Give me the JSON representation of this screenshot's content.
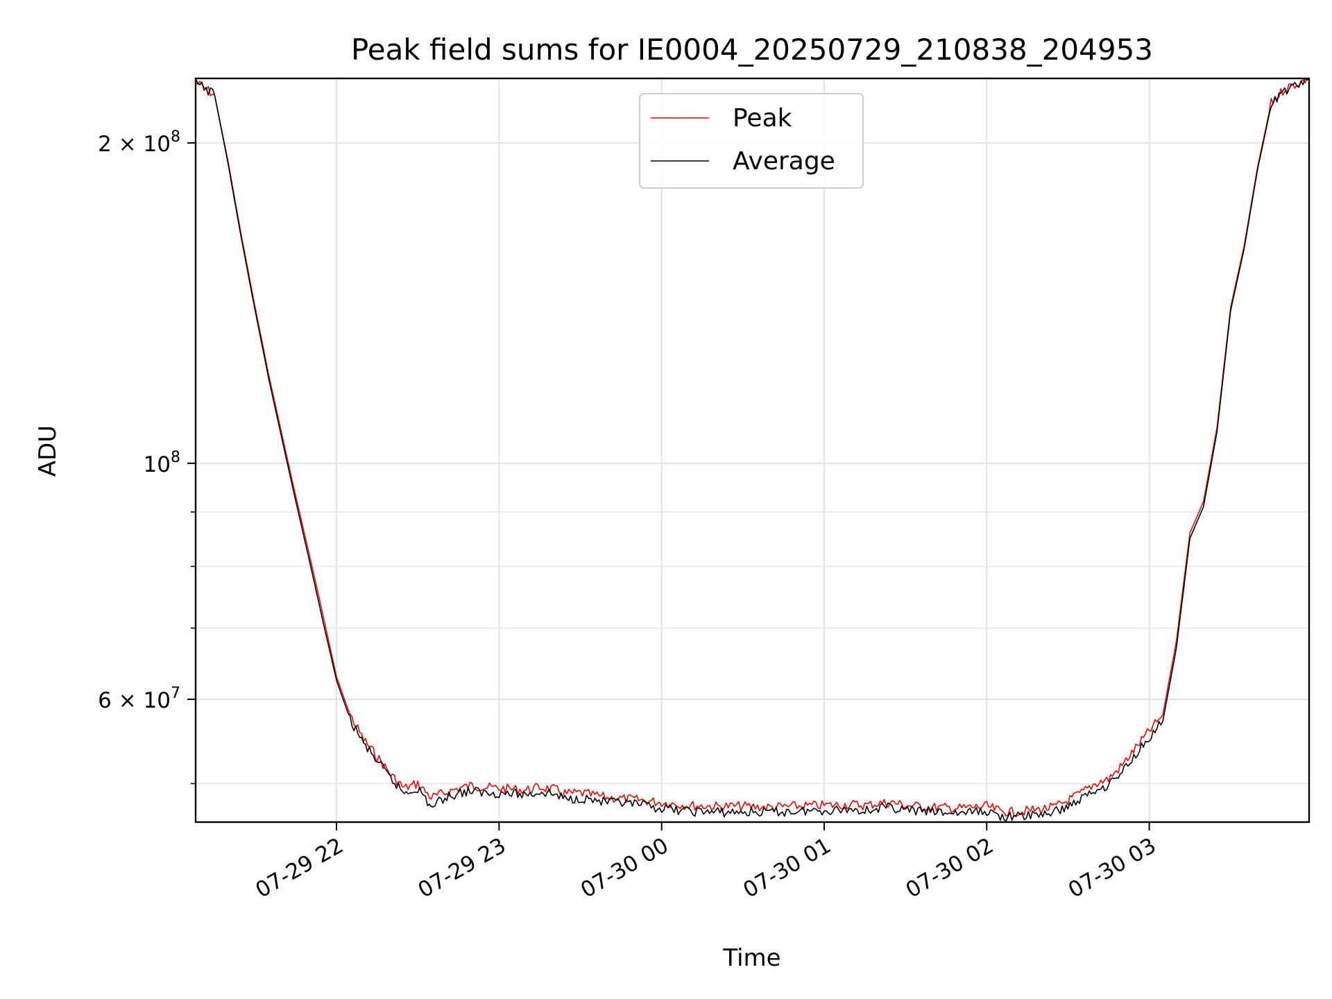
{
  "chart_data": {
    "type": "line",
    "title": "Peak field sums for IE0004_20250729_210838_204953",
    "xlabel": "Time",
    "ylabel": "ADU",
    "yscale": "log",
    "grid": true,
    "legend_position": "top-center",
    "xlim": [
      "2025-07-29 21:08",
      "2025-07-30 03:59"
    ],
    "ylim": [
      46000000,
      230000000
    ],
    "x_ticks": [
      {
        "value": "2025-07-29 22:00",
        "label": "07-29 22"
      },
      {
        "value": "2025-07-29 23:00",
        "label": "07-29 23"
      },
      {
        "value": "2025-07-30 00:00",
        "label": "07-30 00"
      },
      {
        "value": "2025-07-30 01:00",
        "label": "07-30 01"
      },
      {
        "value": "2025-07-30 02:00",
        "label": "07-30 02"
      },
      {
        "value": "2025-07-30 03:00",
        "label": "07-30 03"
      }
    ],
    "y_ticks": [
      {
        "value": 200000000,
        "mantissa": "2",
        "exponent": "8"
      },
      {
        "value": 100000000,
        "mantissa": "",
        "exponent": "8"
      },
      {
        "value": 60000000,
        "mantissa": "6",
        "exponent": "7"
      }
    ],
    "y_minor_ticks": [
      50000000,
      70000000,
      80000000,
      90000000
    ],
    "x": [
      "2025-07-29 21:08",
      "2025-07-29 21:15",
      "2025-07-29 21:20",
      "2025-07-29 21:25",
      "2025-07-29 21:30",
      "2025-07-29 21:35",
      "2025-07-29 21:40",
      "2025-07-29 21:45",
      "2025-07-29 21:50",
      "2025-07-29 21:55",
      "2025-07-29 22:00",
      "2025-07-29 22:05",
      "2025-07-29 22:10",
      "2025-07-29 22:15",
      "2025-07-29 22:20",
      "2025-07-29 22:25",
      "2025-07-29 22:30",
      "2025-07-29 22:35",
      "2025-07-29 22:40",
      "2025-07-29 22:45",
      "2025-07-29 22:50",
      "2025-07-29 22:55",
      "2025-07-29 23:00",
      "2025-07-29 23:10",
      "2025-07-29 23:15",
      "2025-07-29 23:20",
      "2025-07-29 23:25",
      "2025-07-29 23:30",
      "2025-07-29 23:40",
      "2025-07-29 23:50",
      "2025-07-30 00:00",
      "2025-07-30 00:10",
      "2025-07-30 00:20",
      "2025-07-30 00:30",
      "2025-07-30 00:40",
      "2025-07-30 00:50",
      "2025-07-30 01:00",
      "2025-07-30 01:10",
      "2025-07-30 01:15",
      "2025-07-30 01:20",
      "2025-07-30 01:25",
      "2025-07-30 01:30",
      "2025-07-30 01:40",
      "2025-07-30 01:50",
      "2025-07-30 02:00",
      "2025-07-30 02:05",
      "2025-07-30 02:10",
      "2025-07-30 02:20",
      "2025-07-30 02:25",
      "2025-07-30 02:30",
      "2025-07-30 02:35",
      "2025-07-30 02:40",
      "2025-07-30 02:45",
      "2025-07-30 02:50",
      "2025-07-30 02:55",
      "2025-07-30 03:00",
      "2025-07-30 03:05",
      "2025-07-30 03:10",
      "2025-07-30 03:15",
      "2025-07-30 03:20",
      "2025-07-30 03:25",
      "2025-07-30 03:30",
      "2025-07-30 03:35",
      "2025-07-30 03:40",
      "2025-07-30 03:45",
      "2025-07-30 03:50",
      "2025-07-30 03:59"
    ],
    "series": [
      {
        "name": "Peak",
        "color": "#ff0000",
        "values": [
          228000000,
          222000000,
          192000000,
          163000000,
          140000000,
          121000000,
          106000000,
          93000000,
          82000000,
          72000000,
          63000000,
          58000000,
          55000000,
          53000000,
          51000000,
          49500000,
          50000000,
          48500000,
          49000000,
          49500000,
          49800000,
          49600000,
          49500000,
          49300000,
          49600000,
          49400000,
          48900000,
          49000000,
          48500000,
          48300000,
          48000000,
          47700000,
          47600000,
          47600000,
          47500000,
          47600000,
          47700000,
          47800000,
          47700000,
          47900000,
          48000000,
          47700000,
          47500000,
          47400000,
          47600000,
          47100000,
          47000000,
          47300000,
          47500000,
          48200000,
          49000000,
          50000000,
          50500000,
          52000000,
          54000000,
          56000000,
          58000000,
          68000000,
          86000000,
          92000000,
          108000000,
          140000000,
          160000000,
          190000000,
          218000000,
          225000000,
          230000000
        ]
      },
      {
        "name": "Average",
        "color": "#000000",
        "values": [
          228000000,
          222000000,
          191000000,
          162000000,
          139000000,
          120000000,
          105000000,
          92000000,
          81000000,
          71000000,
          62500000,
          57500000,
          54500000,
          52500000,
          50500000,
          49000000,
          49500000,
          47500000,
          48500000,
          49000000,
          49200000,
          49000000,
          49000000,
          48800000,
          49100000,
          48900000,
          48300000,
          48500000,
          48000000,
          47800000,
          47400000,
          47100000,
          47000000,
          47000000,
          47000000,
          47100000,
          47200000,
          47300000,
          47200000,
          47400000,
          47500000,
          47200000,
          47000000,
          46900000,
          47100000,
          46600000,
          46500000,
          46800000,
          47000000,
          47600000,
          48400000,
          49300000,
          49900000,
          51300000,
          53300000,
          55300000,
          57200000,
          67000000,
          85000000,
          91000000,
          107000000,
          139000000,
          159000000,
          189000000,
          217000000,
          224000000,
          230000000
        ]
      }
    ]
  }
}
